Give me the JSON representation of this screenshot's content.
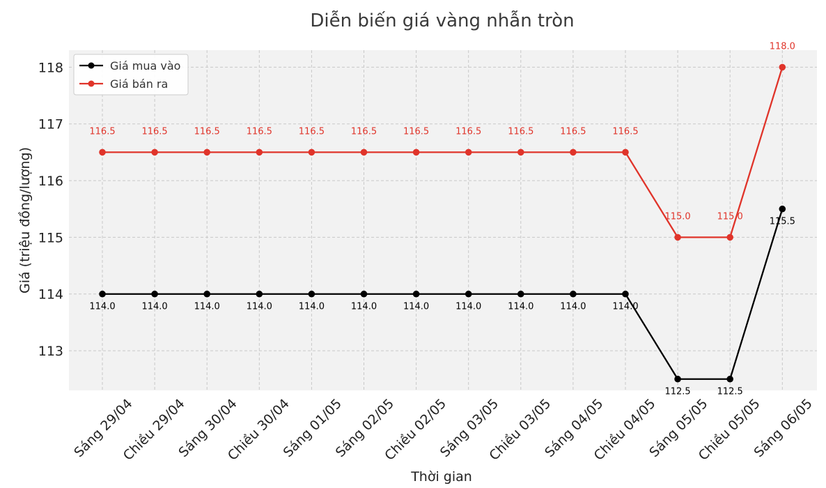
{
  "chart_data": {
    "type": "line",
    "title": "Diễn biến giá vàng nhẫn tròn",
    "xlabel": "Thời gian",
    "ylabel": "Giá (triệu đồng/lượng)",
    "categories": [
      "Sáng 29/04",
      "Chiều 29/04",
      "Sáng 30/04",
      "Chiều 30/04",
      "Sáng 01/05",
      "Sáng 02/05",
      "Chiều 02/05",
      "Sáng 03/05",
      "Chiều 03/05",
      "Sáng 04/05",
      "Chiều 04/05",
      "Sáng 05/05",
      "Chiều 05/05",
      "Sáng 06/05"
    ],
    "ylim": [
      112.3,
      118.3
    ],
    "yticks": [
      113,
      114,
      115,
      116,
      117,
      118
    ],
    "grid": true,
    "legend_position": "top-left",
    "series": [
      {
        "name": "Giá mua vào",
        "color": "#000000",
        "values": [
          114.0,
          114.0,
          114.0,
          114.0,
          114.0,
          114.0,
          114.0,
          114.0,
          114.0,
          114.0,
          114.0,
          112.5,
          112.5,
          115.5
        ]
      },
      {
        "name": "Giá bán ra",
        "color": "#e0342a",
        "values": [
          116.5,
          116.5,
          116.5,
          116.5,
          116.5,
          116.5,
          116.5,
          116.5,
          116.5,
          116.5,
          116.5,
          115.0,
          115.0,
          118.0
        ]
      }
    ]
  }
}
